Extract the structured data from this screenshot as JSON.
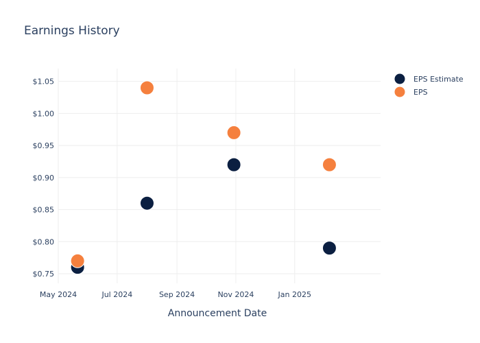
{
  "chart_data": {
    "type": "scatter",
    "title": "Earnings History",
    "xlabel": "Announcement Date",
    "ylabel": "",
    "x_axis_type": "date",
    "xlim": [
      "2024-05-01",
      "2025-03-31"
    ],
    "ylim": [
      0.735,
      1.07
    ],
    "x_ticks": [
      {
        "date": "2024-05-01",
        "label": "May 2024"
      },
      {
        "date": "2024-07-01",
        "label": "Jul 2024"
      },
      {
        "date": "2024-09-01",
        "label": "Sep 2024"
      },
      {
        "date": "2024-11-01",
        "label": "Nov 2024"
      },
      {
        "date": "2025-01-01",
        "label": "Jan 2025"
      }
    ],
    "y_ticks": [
      {
        "value": 0.75,
        "label": "$0.75"
      },
      {
        "value": 0.8,
        "label": "$0.80"
      },
      {
        "value": 0.85,
        "label": "$0.85"
      },
      {
        "value": 0.9,
        "label": "$0.90"
      },
      {
        "value": 0.95,
        "label": "$0.95"
      },
      {
        "value": 1.0,
        "label": "$1.00"
      },
      {
        "value": 1.05,
        "label": "$1.05"
      }
    ],
    "grid": true,
    "legend_position": "top-right",
    "series": [
      {
        "name": "EPS Estimate",
        "color": "#0b1f41",
        "points": [
          {
            "x": "2024-05-21",
            "y": 0.76
          },
          {
            "x": "2024-08-01",
            "y": 0.86
          },
          {
            "x": "2024-10-30",
            "y": 0.92
          },
          {
            "x": "2025-02-06",
            "y": 0.79
          }
        ]
      },
      {
        "name": "EPS",
        "color": "#f5803e",
        "points": [
          {
            "x": "2024-05-21",
            "y": 0.77
          },
          {
            "x": "2024-08-01",
            "y": 1.04
          },
          {
            "x": "2024-10-30",
            "y": 0.97
          },
          {
            "x": "2025-02-06",
            "y": 0.92
          }
        ]
      }
    ]
  }
}
